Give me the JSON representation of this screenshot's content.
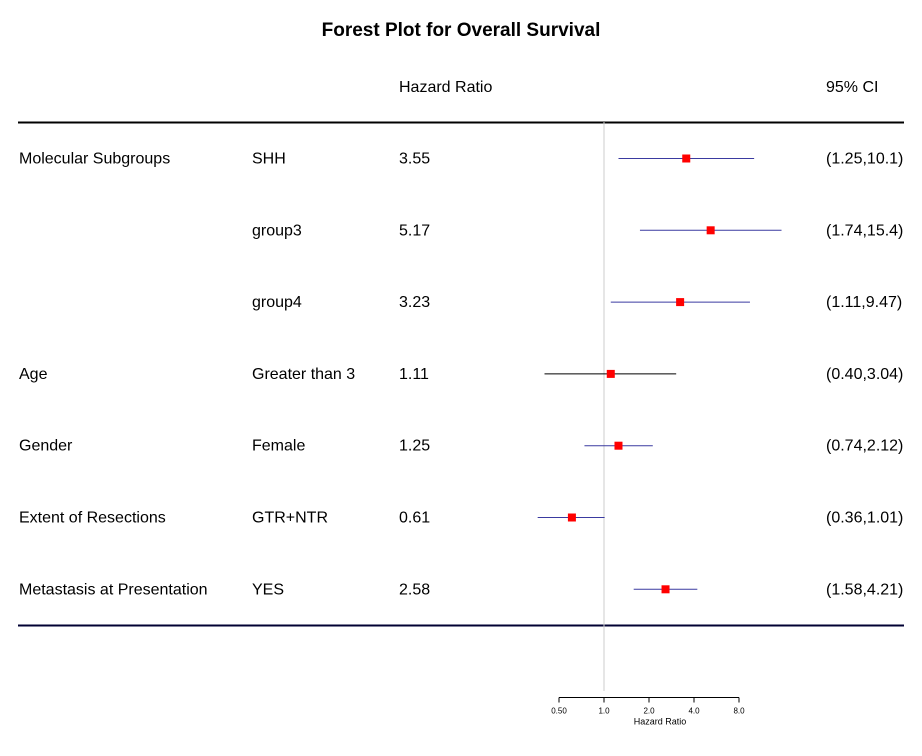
{
  "chart_data": {
    "type": "forest",
    "title": "Forest Plot for Overall Survival",
    "headers": {
      "variable": "",
      "level": "",
      "hazard_ratio": "Hazard Ratio",
      "ci": "95% CI"
    },
    "rows": [
      {
        "variable": "Molecular Subgroups",
        "level": "SHH",
        "hr": 3.55,
        "lo": 1.25,
        "hi": 10.1,
        "hr_text": "3.55",
        "ci_text": "(1.25,10.1)",
        "line_color": "#3a3aa0"
      },
      {
        "variable": "",
        "level": "group3",
        "hr": 5.17,
        "lo": 1.74,
        "hi": 15.4,
        "hr_text": "5.17",
        "ci_text": "(1.74,15.4)",
        "line_color": "#3a3aa0"
      },
      {
        "variable": "",
        "level": "group4",
        "hr": 3.23,
        "lo": 1.11,
        "hi": 9.47,
        "hr_text": "3.23",
        "ci_text": "(1.11,9.47)",
        "line_color": "#3a3aa0"
      },
      {
        "variable": "Age",
        "level": "Greater than 3",
        "hr": 1.11,
        "lo": 0.4,
        "hi": 3.04,
        "hr_text": "1.11",
        "ci_text": "(0.40,3.04)",
        "line_color": "#000000"
      },
      {
        "variable": "Gender",
        "level": "Female",
        "hr": 1.25,
        "lo": 0.74,
        "hi": 2.12,
        "hr_text": "1.25",
        "ci_text": "(0.74,2.12)",
        "line_color": "#3a3aa0"
      },
      {
        "variable": "Extent of Resections",
        "level": "GTR+NTR",
        "hr": 0.61,
        "lo": 0.36,
        "hi": 1.01,
        "hr_text": "0.61",
        "ci_text": "(0.36,1.01)",
        "line_color": "#3a3aa0"
      },
      {
        "variable": "Metastasis at Presentation",
        "level": "YES",
        "hr": 2.58,
        "lo": 1.58,
        "hi": 4.21,
        "hr_text": "2.58",
        "ci_text": "(1.58,4.21)",
        "line_color": "#3a3aa0"
      }
    ],
    "x_axis": {
      "scale": "log",
      "label": "Hazard Ratio",
      "ticks": [
        0.5,
        1.0,
        2.0,
        4.0,
        8.0
      ],
      "tick_labels": [
        "0.50",
        "1.0",
        "2.0",
        "4.0",
        "8.0"
      ],
      "reference_line": 1.0
    },
    "colors": {
      "point": "#ff0000",
      "top_rule": "#000000",
      "bottom_rule": "#000033",
      "reference_line": "#cccccc"
    }
  }
}
